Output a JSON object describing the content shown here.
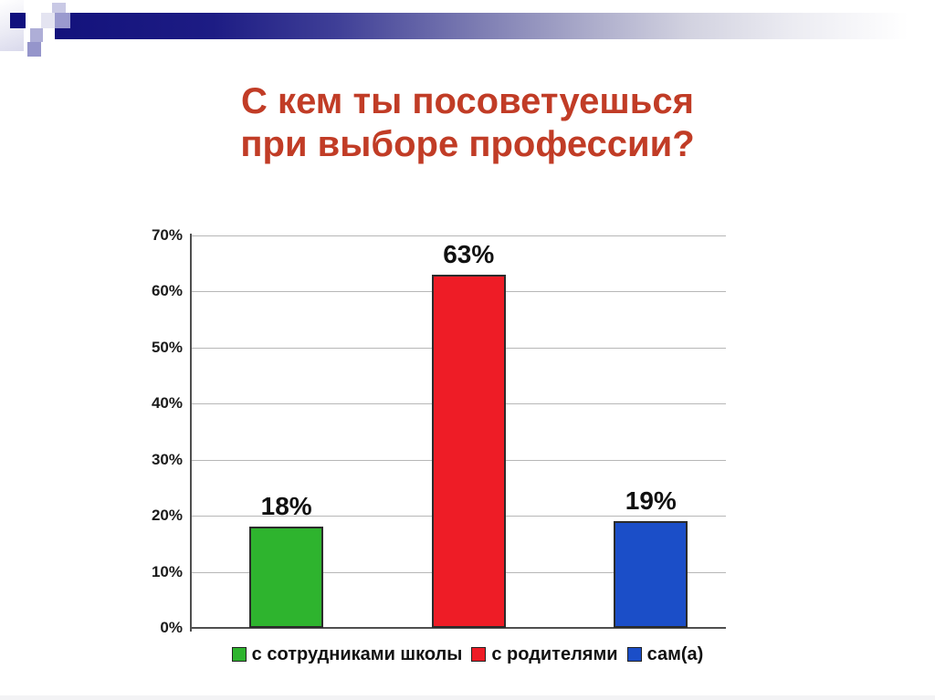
{
  "slide": {
    "title_line1": "С кем ты посоветуешься",
    "title_line2": "при выборе профессии?",
    "title_color": "#c13c26"
  },
  "chart_data": {
    "type": "bar",
    "title": "С кем ты посоветуешься при выборе профессии?",
    "categories": [
      "с сотрудниками школы",
      "с родителями",
      "сам(а)"
    ],
    "values": [
      18,
      63,
      19
    ],
    "value_labels": [
      "18%",
      "63%",
      "19%"
    ],
    "bar_colors": [
      "#2eb42e",
      "#ee1c26",
      "#1b4ec8"
    ],
    "bar_border_color": "#2b2b2b",
    "xlabel": "",
    "ylabel": "",
    "ylim": [
      0,
      70
    ],
    "yticks": [
      0,
      10,
      20,
      30,
      40,
      50,
      60,
      70
    ],
    "ytick_labels": [
      "0%",
      "10%",
      "20%",
      "30%",
      "40%",
      "50%",
      "60%",
      "70%"
    ],
    "grid": true,
    "legend_position": "bottom",
    "legend": [
      {
        "label": "с сотрудниками школы",
        "color": "#2eb42e"
      },
      {
        "label": "с родителями",
        "color": "#ee1c26"
      },
      {
        "label": "сам(а)",
        "color": "#1b4ec8"
      }
    ]
  }
}
